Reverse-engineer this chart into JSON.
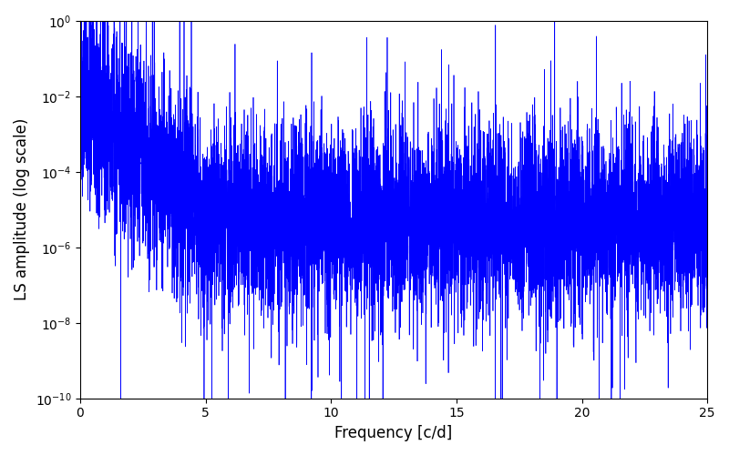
{
  "xlabel": "Frequency [c/d]",
  "ylabel": "LS amplitude (log scale)",
  "xlim": [
    0,
    25
  ],
  "ylim": [
    1e-10,
    1.0
  ],
  "line_color": "#0000ff",
  "line_width": 0.5,
  "background_color": "#ffffff",
  "n_points": 8000,
  "freq_max": 25.0,
  "seed": 77,
  "xticks": [
    0,
    5,
    10,
    15,
    20,
    25
  ],
  "figsize": [
    8.0,
    5.0
  ],
  "dpi": 100
}
